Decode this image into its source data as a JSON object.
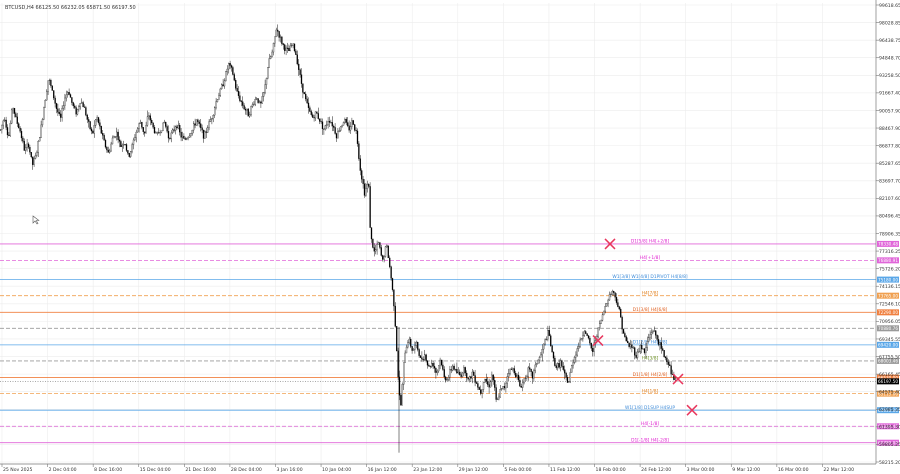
{
  "header": {
    "symbol_info": "BTCUSD,H4  66125.50 66232.05 65871.50 66197.50"
  },
  "chart_data": {
    "type": "candlestick",
    "ylim": [
      58900,
      99600
    ],
    "price_ticks": [
      "99618.65",
      "98028.85",
      "96438.75",
      "94848.70",
      "93258.50",
      "91667.40",
      "90057.90",
      "88467.90",
      "86877.80",
      "85287.65",
      "83697.70",
      "82107.60",
      "80496.45",
      "78906.35",
      "77316.25",
      "75726.20",
      "74136.15",
      "72546.10",
      "70956.05",
      "69345.55",
      "67755.50",
      "66165.45",
      "64575.40",
      "62985.35",
      "61395.30",
      "59805.25",
      "58215.20"
    ],
    "time_ticks": [
      "25 Nov 2025",
      "2 Dec 04:00",
      "8 Dec 16:00",
      "15 Dec 04:00",
      "21 Dec 16:00",
      "28 Dec 04:00",
      "3 Jan 16:00",
      "10 Jan 04:00",
      "16 Jan 12:00",
      "23 Jan 12:00",
      "29 Jan 12:00",
      "5 Feb 00:00",
      "11 Feb 12:00",
      "18 Feb 00:00",
      "24 Feb 12:00",
      "3 Mar 00:00",
      "9 Mar 12:00",
      "16 Mar 00:00",
      "22 Mar 12:00"
    ],
    "price_path": [
      [
        0,
        88400
      ],
      [
        4,
        89600
      ],
      [
        8,
        87600
      ],
      [
        12,
        90600
      ],
      [
        16,
        89200
      ],
      [
        20,
        88200
      ],
      [
        24,
        86600
      ],
      [
        28,
        87100
      ],
      [
        32,
        85300
      ],
      [
        36,
        86300
      ],
      [
        40,
        88300
      ],
      [
        44,
        90800
      ],
      [
        48,
        93000
      ],
      [
        52,
        91700
      ],
      [
        56,
        90300
      ],
      [
        60,
        89300
      ],
      [
        64,
        91200
      ],
      [
        68,
        91900
      ],
      [
        72,
        90600
      ],
      [
        76,
        89900
      ],
      [
        80,
        91000
      ],
      [
        84,
        90300
      ],
      [
        88,
        88900
      ],
      [
        92,
        88000
      ],
      [
        96,
        89600
      ],
      [
        100,
        88400
      ],
      [
        104,
        87200
      ],
      [
        108,
        86300
      ],
      [
        112,
        87600
      ],
      [
        116,
        88200
      ],
      [
        120,
        86900
      ],
      [
        124,
        87400
      ],
      [
        128,
        85900
      ],
      [
        132,
        87100
      ],
      [
        136,
        88300
      ],
      [
        140,
        89100
      ],
      [
        144,
        88000
      ],
      [
        148,
        89800
      ],
      [
        152,
        88700
      ],
      [
        156,
        87900
      ],
      [
        160,
        88400
      ],
      [
        164,
        89100
      ],
      [
        168,
        87800
      ],
      [
        172,
        88100
      ],
      [
        176,
        89000
      ],
      [
        180,
        87900
      ],
      [
        184,
        87500
      ],
      [
        188,
        87900
      ],
      [
        192,
        88400
      ],
      [
        196,
        89300
      ],
      [
        200,
        88500
      ],
      [
        204,
        87800
      ],
      [
        208,
        88900
      ],
      [
        212,
        89700
      ],
      [
        216,
        91000
      ],
      [
        220,
        91900
      ],
      [
        224,
        92900
      ],
      [
        228,
        94200
      ],
      [
        232,
        93500
      ],
      [
        236,
        91800
      ],
      [
        240,
        91000
      ],
      [
        244,
        90300
      ],
      [
        248,
        89800
      ],
      [
        252,
        90600
      ],
      [
        256,
        91300
      ],
      [
        260,
        90500
      ],
      [
        264,
        91900
      ],
      [
        268,
        94300
      ],
      [
        272,
        95300
      ],
      [
        276,
        97400
      ],
      [
        280,
        96400
      ],
      [
        284,
        95600
      ],
      [
        288,
        95300
      ],
      [
        292,
        96000
      ],
      [
        296,
        94900
      ],
      [
        300,
        92900
      ],
      [
        304,
        91400
      ],
      [
        308,
        90200
      ],
      [
        312,
        89500
      ],
      [
        316,
        89900
      ],
      [
        320,
        89100
      ],
      [
        324,
        88400
      ],
      [
        328,
        89400
      ],
      [
        332,
        88900
      ],
      [
        336,
        87900
      ],
      [
        340,
        88700
      ],
      [
        344,
        89300
      ],
      [
        348,
        88400
      ],
      [
        352,
        89200
      ],
      [
        356,
        88100
      ],
      [
        360,
        84800
      ],
      [
        364,
        82900
      ],
      [
        368,
        83800
      ],
      [
        370,
        79000
      ],
      [
        374,
        77500
      ],
      [
        378,
        78400
      ],
      [
        382,
        76800
      ],
      [
        386,
        78300
      ],
      [
        390,
        75800
      ],
      [
        394,
        72600
      ],
      [
        398,
        66000
      ],
      [
        400,
        63600
      ],
      [
        404,
        68600
      ],
      [
        408,
        70000
      ],
      [
        412,
        68900
      ],
      [
        416,
        69500
      ],
      [
        420,
        68100
      ],
      [
        424,
        68600
      ],
      [
        428,
        67400
      ],
      [
        432,
        67900
      ],
      [
        436,
        66900
      ],
      [
        440,
        68200
      ],
      [
        444,
        66400
      ],
      [
        448,
        66600
      ],
      [
        452,
        67600
      ],
      [
        456,
        67000
      ],
      [
        460,
        66700
      ],
      [
        464,
        67400
      ],
      [
        468,
        66200
      ],
      [
        472,
        67000
      ],
      [
        476,
        66100
      ],
      [
        480,
        65200
      ],
      [
        484,
        66600
      ],
      [
        488,
        65700
      ],
      [
        492,
        66900
      ],
      [
        496,
        64200
      ],
      [
        500,
        65400
      ],
      [
        504,
        65700
      ],
      [
        508,
        67100
      ],
      [
        512,
        67300
      ],
      [
        516,
        66800
      ],
      [
        520,
        65600
      ],
      [
        524,
        66500
      ],
      [
        528,
        67200
      ],
      [
        532,
        66600
      ],
      [
        536,
        67900
      ],
      [
        540,
        68400
      ],
      [
        544,
        69600
      ],
      [
        548,
        70600
      ],
      [
        552,
        68400
      ],
      [
        556,
        67400
      ],
      [
        560,
        67900
      ],
      [
        564,
        66700
      ],
      [
        568,
        66000
      ],
      [
        572,
        67900
      ],
      [
        576,
        68900
      ],
      [
        580,
        69800
      ],
      [
        584,
        70800
      ],
      [
        588,
        69800
      ],
      [
        592,
        68800
      ],
      [
        596,
        70300
      ],
      [
        600,
        71400
      ],
      [
        604,
        72600
      ],
      [
        608,
        73700
      ],
      [
        612,
        74200
      ],
      [
        616,
        73400
      ],
      [
        620,
        71900
      ],
      [
        624,
        70000
      ],
      [
        628,
        69400
      ],
      [
        632,
        69200
      ],
      [
        636,
        68400
      ],
      [
        640,
        69400
      ],
      [
        644,
        68700
      ],
      [
        648,
        70000
      ],
      [
        652,
        70800
      ],
      [
        656,
        70100
      ],
      [
        660,
        69200
      ],
      [
        664,
        68400
      ],
      [
        668,
        67800
      ],
      [
        672,
        66600
      ],
      [
        676,
        66200
      ]
    ],
    "levels": [
      {
        "label": "D1[5/8] H4[+2/8]",
        "price": 78330,
        "color": "#e066d9",
        "style": "solid",
        "tag_text": "78330.48",
        "text_color": "#e020d0"
      },
      {
        "label": "H4[+1/8]",
        "price": 76880,
        "color": "#e066d9",
        "style": "dash",
        "tag_text": "76880.91",
        "text_color": "#e020d0"
      },
      {
        "label": "W1[3/8] W1[4/8] D1PIVOT H4[8/8]",
        "price": 75180,
        "color": "#5aa7e8",
        "style": "solid",
        "tag_text": "75180.00",
        "text_color": "#3c8ad8"
      },
      {
        "label": "H4[7/8]",
        "price": 73760,
        "color": "#f0a050",
        "style": "dash",
        "tag_text": "73765.00",
        "text_color": "#e08020"
      },
      {
        "label": "D1[3/8] H4[6/8]",
        "price": 72290,
        "color": "#f08040",
        "style": "solid",
        "tag_text": "72290.00",
        "text_color": "#e06020"
      },
      {
        "label": "",
        "price": 70880,
        "color": "#9a9a9a",
        "style": "dash",
        "tag_text": "70880.76",
        "text_color": "#555555"
      },
      {
        "label": "D1[2/8] H4[4/8]",
        "price": 69420,
        "color": "#5aa7e8",
        "style": "solid",
        "tag_text": "69420.00",
        "text_color": "#3c8ad8"
      },
      {
        "label": "H4[3/8]",
        "price": 68000,
        "color": "#9a9a9a",
        "style": "dash",
        "tag_text": "68003.46",
        "text_color": "#6b8e23"
      },
      {
        "label": "D1[1/8] H4[2/8]",
        "price": 66530,
        "color": "#f08040",
        "style": "solid",
        "tag_text": "66530.00",
        "text_color": "#e06020"
      },
      {
        "label": "H4[1/8]",
        "price": 65110,
        "color": "#f0a050",
        "style": "dash",
        "tag_text": "65115.00",
        "text_color": "#e08020"
      },
      {
        "label": "W1[1/8] D1SUP H4SUP",
        "price": 63650,
        "color": "#5aa7e8",
        "style": "solid",
        "tag_text": "63650.00",
        "text_color": "#3c8ad8"
      },
      {
        "label": "H4[-1/8]",
        "price": 62230,
        "color": "#e066d9",
        "style": "dash",
        "tag_text": "62230.45",
        "text_color": "#e020d0"
      },
      {
        "label": "D1[-1/8] H4[-2/8]",
        "price": 60780,
        "color": "#e066d9",
        "style": "solid",
        "tag_text": "60780.00",
        "text_color": "#e020d0"
      }
    ],
    "current_price": {
      "value": 66197.5,
      "tag_text": "66197.50",
      "color": "#000000"
    },
    "markers": [
      {
        "type": "x",
        "price": 78330,
        "bar_x": 610,
        "color": "#e8365d"
      },
      {
        "type": "x",
        "price": 69800,
        "bar_x": 598,
        "color": "#e8365d"
      },
      {
        "type": "x",
        "price": 66400,
        "bar_x": 678,
        "color": "#e8365d"
      },
      {
        "type": "x",
        "price": 63650,
        "bar_x": 692,
        "color": "#e8365d"
      }
    ]
  }
}
